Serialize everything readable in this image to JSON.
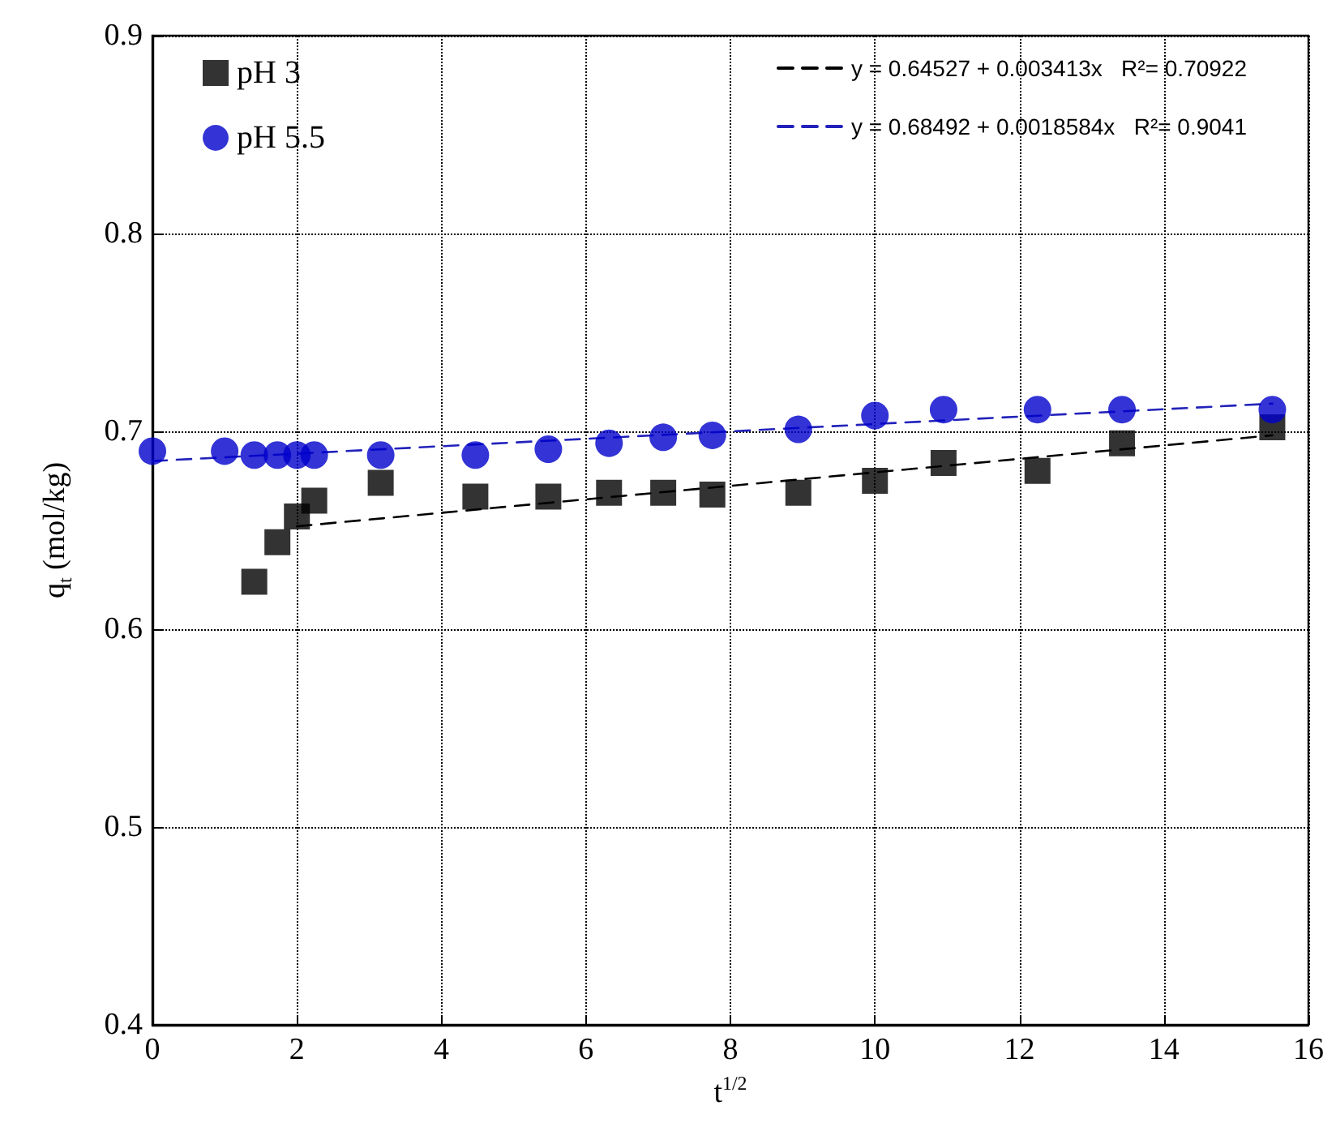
{
  "chart_data": {
    "type": "scatter",
    "xlabel": "t$^{1/2}$",
    "ylabel": "q$_{t}$ (mol/kg)",
    "xlim": [
      0,
      16
    ],
    "xticks": [
      0,
      2,
      4,
      6,
      8,
      10,
      12,
      14,
      16
    ],
    "ylim": [
      0.4,
      0.9
    ],
    "yticks": [
      0.4,
      0.5,
      0.6,
      0.7,
      0.8,
      0.9
    ],
    "grid": true,
    "legend": "top",
    "series": [
      {
        "name": "pH 3",
        "color": "#000000",
        "marker": "square",
        "x": [
          1.41,
          1.73,
          2,
          2.24,
          3.16,
          4.47,
          5.48,
          6.32,
          7.07,
          7.75,
          8.94,
          10,
          10.95,
          12.25,
          13.42,
          15.5
        ],
        "values": [
          0.624,
          0.644,
          0.657,
          0.665,
          0.674,
          0.667,
          0.667,
          0.669,
          0.669,
          0.668,
          0.669,
          0.675,
          0.684,
          0.68,
          0.694,
          0.702
        ]
      },
      {
        "name": "pH 5.5",
        "color": "#0000cc",
        "marker": "circle",
        "x": [
          0,
          1,
          1.41,
          1.73,
          2,
          2.24,
          3.16,
          4.47,
          5.48,
          6.32,
          7.07,
          7.75,
          8.94,
          10,
          10.95,
          12.25,
          13.42,
          15.5
        ],
        "values": [
          0.69,
          0.69,
          0.688,
          0.688,
          0.688,
          0.688,
          0.688,
          0.688,
          0.691,
          0.694,
          0.697,
          0.698,
          0.701,
          0.708,
          0.711,
          0.711,
          0.711,
          0.711
        ]
      },
      {
        "name": "y = 0.64527 + 0.003413x   R²= 0.70922",
        "type": "line",
        "line_style": "dashed",
        "marker": "none",
        "color": "#000000",
        "x": [
          2,
          15.5
        ],
        "values": [
          0.652,
          0.698
        ]
      },
      {
        "name": "y = 0.68492 + 0.0018584x   R²= 0.9041",
        "type": "line",
        "line_style": "dashed",
        "marker": "none",
        "color": "#2222bb",
        "x": [
          0,
          15.5
        ],
        "values": [
          0.685,
          0.714
        ]
      }
    ]
  }
}
